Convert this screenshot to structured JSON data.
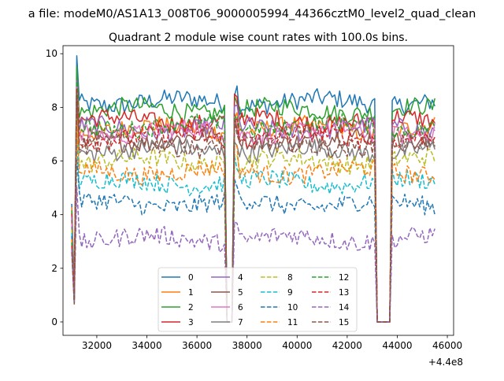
{
  "suptitle": "a file: modeM0/AS1A13_008T06_9000005994_44366cztM0_level2_quad_clean",
  "chart_data": {
    "type": "line",
    "title": "Quadrant 2 module wise count rates with 100.0s bins.",
    "xlabel": "",
    "ylabel": "",
    "offset_label": "+4.4e8",
    "xlim": [
      30650,
      46250
    ],
    "ylim": [
      -0.5,
      10.3
    ],
    "xticks": [
      32000,
      34000,
      36000,
      38000,
      40000,
      42000,
      44000,
      46000
    ],
    "xtick_labels": [
      "32000",
      "34000",
      "36000",
      "38000",
      "40000",
      "42000",
      "44000",
      "46000"
    ],
    "yticks": [
      0,
      2,
      4,
      6,
      8,
      10
    ],
    "ytick_labels": [
      "0",
      "2",
      "4",
      "6",
      "8",
      "10"
    ],
    "grid": false,
    "legend_position": "lower center",
    "series": [
      {
        "name": "0",
        "color": "#1f77b4",
        "dash": "solid",
        "level": 8.2
      },
      {
        "name": "1",
        "color": "#ff7f0e",
        "dash": "solid",
        "level": 7.2
      },
      {
        "name": "2",
        "color": "#2ca02c",
        "dash": "solid",
        "level": 7.9
      },
      {
        "name": "3",
        "color": "#d62728",
        "dash": "solid",
        "level": 7.5
      },
      {
        "name": "4",
        "color": "#9467bd",
        "dash": "solid",
        "level": 7.2
      },
      {
        "name": "5",
        "color": "#8c564b",
        "dash": "solid",
        "level": 6.8
      },
      {
        "name": "6",
        "color": "#e377c2",
        "dash": "solid",
        "level": 7.1
      },
      {
        "name": "7",
        "color": "#7f7f7f",
        "dash": "solid",
        "level": 6.4
      },
      {
        "name": "8",
        "color": "#bcbd22",
        "dash": "dashed",
        "level": 6.0
      },
      {
        "name": "9",
        "color": "#17becf",
        "dash": "dashed",
        "level": 5.2
      },
      {
        "name": "10",
        "color": "#1f77b4",
        "dash": "dashed",
        "level": 4.4
      },
      {
        "name": "11",
        "color": "#ff7f0e",
        "dash": "dashed",
        "level": 5.6
      },
      {
        "name": "12",
        "color": "#2ca02c",
        "dash": "dashed",
        "level": 7.3
      },
      {
        "name": "13",
        "color": "#d62728",
        "dash": "dashed",
        "level": 6.9
      },
      {
        "name": "14",
        "color": "#9467bd",
        "dash": "dashed",
        "level": 3.1
      },
      {
        "name": "15",
        "color": "#8c564b",
        "dash": "dashed",
        "level": 6.6
      }
    ],
    "x_start": 31000,
    "x_end": 45500,
    "bin": 100,
    "gaps": [
      [
        37200,
        37400
      ],
      [
        43200,
        43700
      ]
    ]
  }
}
